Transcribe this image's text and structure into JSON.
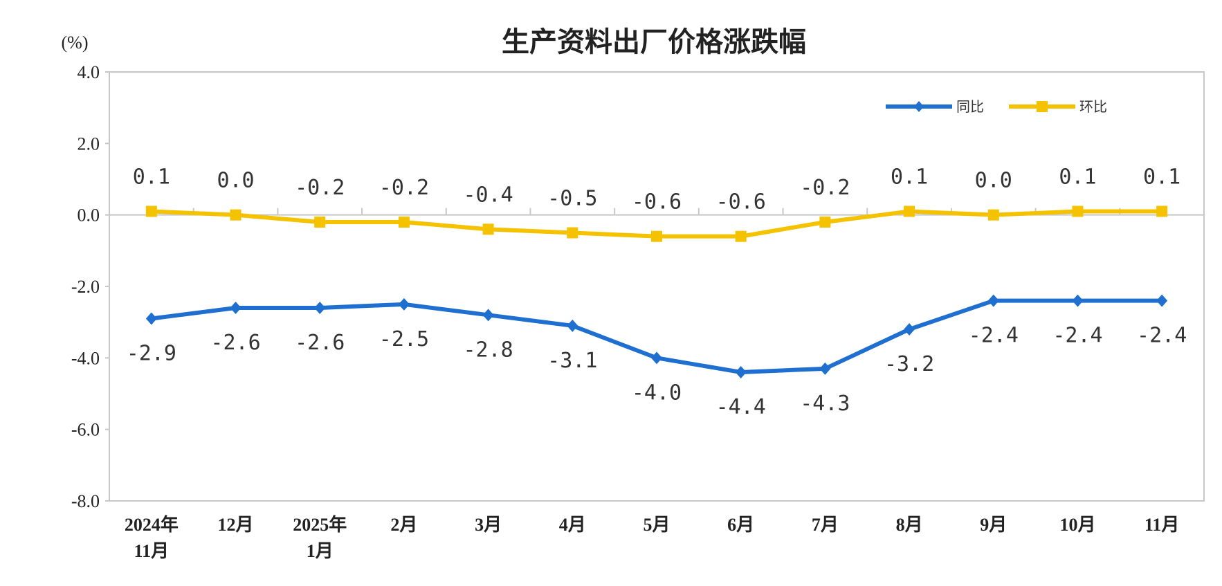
{
  "chart_data": {
    "type": "line",
    "title": "生产资料出厂价格涨跌幅",
    "ylabel": "(%)",
    "ylim": [
      -8.0,
      4.0
    ],
    "yticks": [
      "4.0",
      "2.0",
      "0.0",
      "-2.0",
      "-4.0",
      "-6.0",
      "-8.0"
    ],
    "ytick_values": [
      4,
      2,
      0,
      -2,
      -4,
      -6,
      -8
    ],
    "categories": [
      [
        "2024年",
        "11月"
      ],
      [
        "12月"
      ],
      [
        "2025年",
        "1月"
      ],
      [
        "2月"
      ],
      [
        "3月"
      ],
      [
        "4月"
      ],
      [
        "5月"
      ],
      [
        "6月"
      ],
      [
        "7月"
      ],
      [
        "8月"
      ],
      [
        "9月"
      ],
      [
        "10月"
      ],
      [
        "11月"
      ]
    ],
    "legend_placement": "top-right",
    "grid": false,
    "series": [
      {
        "name": "同比",
        "color": "#1f6fd0",
        "marker": "diamond",
        "values": [
          -2.9,
          -2.6,
          -2.6,
          -2.5,
          -2.8,
          -3.1,
          -4.0,
          -4.4,
          -4.3,
          -3.2,
          -2.4,
          -2.4,
          -2.4
        ],
        "labels": [
          "-2.9",
          "-2.6",
          "-2.6",
          "-2.5",
          "-2.8",
          "-3.1",
          "-4.0",
          "-4.4",
          "-4.3",
          "-3.2",
          "-2.4",
          "-2.4",
          "-2.4"
        ]
      },
      {
        "name": "环比",
        "color": "#f5c200",
        "marker": "square",
        "values": [
          0.1,
          0.0,
          -0.2,
          -0.2,
          -0.4,
          -0.5,
          -0.6,
          -0.6,
          -0.2,
          0.1,
          0.0,
          0.1,
          0.1
        ],
        "labels": [
          "0.1",
          "0.0",
          "-0.2",
          "-0.2",
          "-0.4",
          "-0.5",
          "-0.6",
          "-0.6",
          "-0.2",
          "0.1",
          "0.0",
          "0.1",
          "0.1"
        ]
      }
    ]
  }
}
